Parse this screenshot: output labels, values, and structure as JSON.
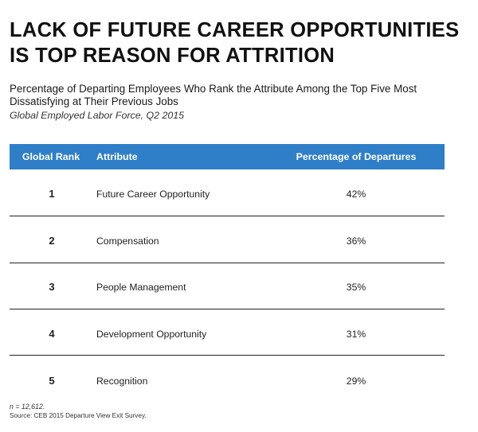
{
  "title_lines": [
    "LACK OF FUTURE CAREER OPPORTUNITIES",
    "IS TOP REASON FOR ATTRITION"
  ],
  "subtitle_lines": [
    "Percentage of Departing Employees Who Rank the Attribute Among the Top Five Most",
    "Dissatisfying at Their Previous Jobs"
  ],
  "scope": "Global Employed Labor Force, Q2 2015",
  "footnote": "n = 12,612.",
  "source": "Source: CEB 2015 Departure View Exit Survey.",
  "colors": {
    "header_bg": "#2f7fc8",
    "header_text": "#ffffff",
    "divider": "#222222"
  },
  "chart_data": {
    "type": "table",
    "title": "LACK OF FUTURE CAREER OPPORTUNITIES IS TOP REASON FOR ATTRITION",
    "subtitle": "Percentage of Departing Employees Who Rank the Attribute Among the Top Five Most Dissatisfying at Their Previous Jobs",
    "columns": [
      "Global Rank",
      "Attribute",
      "Percentage of Departures"
    ],
    "rows": [
      {
        "rank": "1",
        "attribute": "Future Career Opportunity",
        "percentage": "42%"
      },
      {
        "rank": "2",
        "attribute": "Compensation",
        "percentage": "36%"
      },
      {
        "rank": "3",
        "attribute": "People Management",
        "percentage": "35%"
      },
      {
        "rank": "4",
        "attribute": "Development Opportunity",
        "percentage": "31%"
      },
      {
        "rank": "5",
        "attribute": "Recognition",
        "percentage": "29%"
      }
    ]
  }
}
